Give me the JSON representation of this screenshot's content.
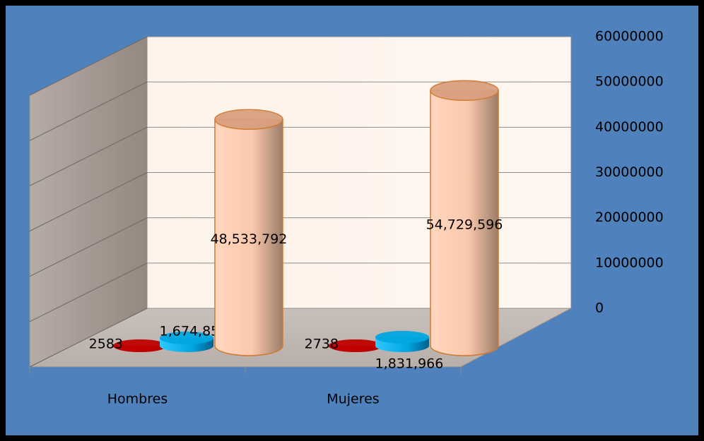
{
  "chart_data": {
    "type": "cylinder3d",
    "categories": [
      "Hombres",
      "Mujeres"
    ],
    "series": [
      {
        "color": "#c00000",
        "values": [
          2583,
          2738
        ]
      },
      {
        "color": "#00a6e0",
        "values": [
          1674855,
          1831966
        ],
        "value_labels": [
          "1,674,855",
          "1,831,966"
        ]
      },
      {
        "color": "#fbc9ac",
        "values": [
          48533792,
          54729596
        ],
        "value_labels": [
          "48,533,792",
          "54,729,596"
        ]
      }
    ],
    "ylim": [
      0,
      60000000
    ],
    "yticks": [
      0,
      10000000,
      20000000,
      30000000,
      40000000,
      50000000,
      60000000
    ],
    "grid": true
  }
}
